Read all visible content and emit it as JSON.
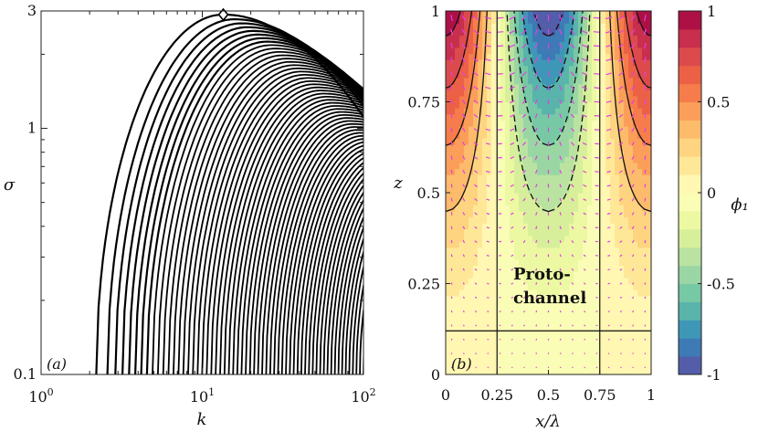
{
  "chart_data": [
    {
      "type": "line",
      "panel_label": "(a)",
      "xlabel": "k",
      "ylabel": "σ",
      "xscale": "log",
      "yscale": "log",
      "xlim": [
        1,
        100
      ],
      "ylim": [
        0.1,
        3
      ],
      "xticks": [
        {
          "value": 1,
          "base": "10",
          "exp": "0"
        },
        {
          "value": 10,
          "base": "10",
          "exp": "1"
        },
        {
          "value": 100,
          "base": "10",
          "exp": "2"
        }
      ],
      "yticks": [
        {
          "value": 0.1,
          "label": "0.1"
        },
        {
          "value": 1,
          "label": "1"
        },
        {
          "value": 3,
          "label": "3"
        }
      ],
      "family": {
        "description": "dispersion curves sigma(k) for successive modes",
        "count": 60,
        "first_mode": {
          "k_min": 2.2,
          "sigma_max": 2.9,
          "k_at_max": 13.5
        },
        "k_min_range": [
          2.2,
          100
        ],
        "marker": {
          "shape": "diamond",
          "k": 13.5,
          "sigma": 2.9
        }
      }
    },
    {
      "type": "heatmap",
      "panel_label": "(b)",
      "xlabel": "x/λ",
      "ylabel": "z",
      "xlim": [
        0,
        1
      ],
      "ylim": [
        0,
        1
      ],
      "xticks": [
        0,
        0.25,
        0.5,
        0.75,
        1
      ],
      "xticklabels": [
        "0",
        "0.25",
        "0.5",
        "0.75",
        "1"
      ],
      "yticks": [
        0,
        0.25,
        0.5,
        0.75,
        1
      ],
      "yticklabels": [
        "0",
        "0.25",
        "0.5",
        "0.75",
        "1"
      ],
      "field": "phi1",
      "colorbar": {
        "label": "ϕ₁",
        "range": [
          -1,
          1
        ],
        "ticks": [
          -1,
          -0.5,
          0,
          0.5,
          1
        ],
        "ticklabels": [
          "-1",
          "-0.5",
          "0",
          "0.5",
          "1"
        ],
        "levels": 20,
        "colormap": [
          "#5e4fa2",
          "#3288bd",
          "#66c2a5",
          "#abdda4",
          "#e6f598",
          "#ffffbf",
          "#fee08b",
          "#fdae61",
          "#f46d43",
          "#d53e4f",
          "#9e0142"
        ]
      },
      "approx_field": "phi1 ≈ cos(2πx) · z^1.5",
      "contour_levels": [
        -0.9,
        -0.7,
        -0.5,
        -0.3,
        0.3,
        0.5,
        0.7,
        0.9
      ],
      "channel_lines_x": [
        0.25,
        0.75
      ],
      "channel_base_z": 0.12,
      "annotation_lines": [
        "Proto-",
        "channel"
      ],
      "vector_color": "#e040e0"
    }
  ]
}
